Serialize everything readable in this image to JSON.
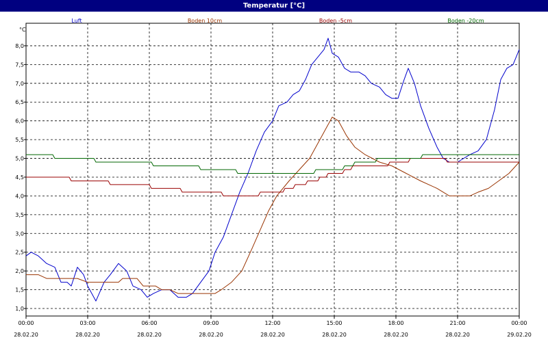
{
  "window": {
    "title": "Temperatur [°C]"
  },
  "chart_data": {
    "type": "line",
    "ylabel": "°C",
    "ylim": [
      0.8,
      8.6
    ],
    "yticks": [
      1.0,
      1.5,
      2.0,
      2.5,
      3.0,
      3.5,
      4.0,
      4.5,
      5.0,
      5.5,
      6.0,
      6.5,
      7.0,
      7.5,
      8.0
    ],
    "ytick_labels": [
      "1,0",
      "1,5",
      "2,0",
      "2,5",
      "3,0",
      "3,5",
      "4,0",
      "4,5",
      "5,0",
      "5,5",
      "6,0",
      "6,5",
      "7,0",
      "7,5",
      "8,0"
    ],
    "xlim": [
      0,
      24
    ],
    "xticks": [
      {
        "x": 0,
        "time": "00:00",
        "date": "28.02.20"
      },
      {
        "x": 3,
        "time": "03:00",
        "date": "28.02.20"
      },
      {
        "x": 6,
        "time": "06:00",
        "date": "28.02.20"
      },
      {
        "x": 9,
        "time": "09:00",
        "date": "28.02.20"
      },
      {
        "x": 12,
        "time": "12:00",
        "date": "28.02.20"
      },
      {
        "x": 15,
        "time": "15:00",
        "date": "28.02.20"
      },
      {
        "x": 18,
        "time": "18:00",
        "date": "28.02.20"
      },
      {
        "x": 21,
        "time": "21:00",
        "date": "28.02.20"
      },
      {
        "x": 24,
        "time": "00:00",
        "date": "29.02.20"
      }
    ],
    "grid": true,
    "legend_position": "top",
    "series": [
      {
        "name": "Luft",
        "color": "#0000cc",
        "points": [
          [
            0,
            2.4
          ],
          [
            0.25,
            2.5
          ],
          [
            0.6,
            2.4
          ],
          [
            1,
            2.2
          ],
          [
            1.4,
            2.1
          ],
          [
            1.7,
            1.7
          ],
          [
            2,
            1.7
          ],
          [
            2.2,
            1.6
          ],
          [
            2.5,
            2.1
          ],
          [
            2.8,
            1.9
          ],
          [
            3,
            1.6
          ],
          [
            3.4,
            1.2
          ],
          [
            3.8,
            1.7
          ],
          [
            4.1,
            1.9
          ],
          [
            4.5,
            2.2
          ],
          [
            4.9,
            2.0
          ],
          [
            5.2,
            1.6
          ],
          [
            5.6,
            1.5
          ],
          [
            5.9,
            1.3
          ],
          [
            6.2,
            1.4
          ],
          [
            6.6,
            1.5
          ],
          [
            7,
            1.5
          ],
          [
            7.4,
            1.3
          ],
          [
            7.8,
            1.3
          ],
          [
            8.1,
            1.4
          ],
          [
            8.5,
            1.7
          ],
          [
            8.9,
            2.0
          ],
          [
            9.2,
            2.5
          ],
          [
            9.6,
            2.9
          ],
          [
            10,
            3.5
          ],
          [
            10.4,
            4.1
          ],
          [
            10.8,
            4.6
          ],
          [
            11.2,
            5.2
          ],
          [
            11.6,
            5.7
          ],
          [
            12,
            6.0
          ],
          [
            12.3,
            6.4
          ],
          [
            12.7,
            6.5
          ],
          [
            13,
            6.7
          ],
          [
            13.3,
            6.8
          ],
          [
            13.6,
            7.1
          ],
          [
            13.9,
            7.5
          ],
          [
            14.2,
            7.7
          ],
          [
            14.5,
            7.9
          ],
          [
            14.7,
            8.2
          ],
          [
            14.9,
            7.8
          ],
          [
            15.2,
            7.7
          ],
          [
            15.5,
            7.4
          ],
          [
            15.8,
            7.3
          ],
          [
            16.2,
            7.3
          ],
          [
            16.5,
            7.2
          ],
          [
            16.8,
            7.0
          ],
          [
            17.2,
            6.9
          ],
          [
            17.5,
            6.7
          ],
          [
            17.8,
            6.6
          ],
          [
            18.1,
            6.6
          ],
          [
            18.4,
            7.1
          ],
          [
            18.6,
            7.4
          ],
          [
            18.9,
            7.0
          ],
          [
            19.2,
            6.4
          ],
          [
            19.6,
            5.8
          ],
          [
            20,
            5.3
          ],
          [
            20.3,
            5.0
          ],
          [
            20.6,
            4.9
          ],
          [
            21,
            4.9
          ],
          [
            21.3,
            5.0
          ],
          [
            21.6,
            5.1
          ],
          [
            22,
            5.2
          ],
          [
            22.4,
            5.5
          ],
          [
            22.8,
            6.3
          ],
          [
            23.1,
            7.1
          ],
          [
            23.4,
            7.4
          ],
          [
            23.7,
            7.5
          ],
          [
            24,
            7.9
          ]
        ]
      },
      {
        "name": "Boden 10cm",
        "color": "#993300",
        "points": [
          [
            0,
            1.9
          ],
          [
            0.6,
            1.9
          ],
          [
            1,
            1.8
          ],
          [
            2.5,
            1.8
          ],
          [
            3,
            1.7
          ],
          [
            4.5,
            1.7
          ],
          [
            4.7,
            1.8
          ],
          [
            5.4,
            1.8
          ],
          [
            5.7,
            1.6
          ],
          [
            6.3,
            1.6
          ],
          [
            6.6,
            1.5
          ],
          [
            7,
            1.5
          ],
          [
            7.4,
            1.4
          ],
          [
            9.2,
            1.4
          ],
          [
            9.5,
            1.5
          ],
          [
            10,
            1.7
          ],
          [
            10.5,
            2.0
          ],
          [
            11,
            2.6
          ],
          [
            11.4,
            3.1
          ],
          [
            11.8,
            3.6
          ],
          [
            12.2,
            4.0
          ],
          [
            12.8,
            4.4
          ],
          [
            13.3,
            4.7
          ],
          [
            13.8,
            5.0
          ],
          [
            14.2,
            5.4
          ],
          [
            14.6,
            5.8
          ],
          [
            14.9,
            6.1
          ],
          [
            15.2,
            6.0
          ],
          [
            15.6,
            5.6
          ],
          [
            16,
            5.3
          ],
          [
            16.5,
            5.1
          ],
          [
            17.2,
            4.9
          ],
          [
            17.8,
            4.8
          ],
          [
            18.5,
            4.6
          ],
          [
            19.2,
            4.4
          ],
          [
            20,
            4.2
          ],
          [
            20.6,
            4.0
          ],
          [
            21.6,
            4.0
          ],
          [
            22,
            4.1
          ],
          [
            22.5,
            4.2
          ],
          [
            23,
            4.4
          ],
          [
            23.5,
            4.6
          ],
          [
            24,
            4.9
          ]
        ]
      },
      {
        "name": "Boden -5cm",
        "color": "#990000",
        "points": [
          [
            0,
            4.5
          ],
          [
            2.1,
            4.5
          ],
          [
            2.2,
            4.4
          ],
          [
            4,
            4.4
          ],
          [
            4.1,
            4.3
          ],
          [
            6,
            4.3
          ],
          [
            6.1,
            4.2
          ],
          [
            7.5,
            4.2
          ],
          [
            7.6,
            4.1
          ],
          [
            9.5,
            4.1
          ],
          [
            9.6,
            4.0
          ],
          [
            11.3,
            4.0
          ],
          [
            11.4,
            4.1
          ],
          [
            12.5,
            4.1
          ],
          [
            12.6,
            4.2
          ],
          [
            13,
            4.2
          ],
          [
            13.1,
            4.3
          ],
          [
            13.6,
            4.3
          ],
          [
            13.7,
            4.4
          ],
          [
            14.2,
            4.4
          ],
          [
            14.3,
            4.5
          ],
          [
            14.6,
            4.5
          ],
          [
            14.7,
            4.6
          ],
          [
            15.4,
            4.6
          ],
          [
            15.5,
            4.7
          ],
          [
            15.8,
            4.7
          ],
          [
            15.9,
            4.8
          ],
          [
            17.6,
            4.8
          ],
          [
            17.7,
            4.9
          ],
          [
            18.6,
            4.9
          ],
          [
            18.7,
            5.0
          ],
          [
            20.4,
            5.0
          ],
          [
            20.5,
            4.9
          ],
          [
            24,
            4.9
          ]
        ]
      },
      {
        "name": "Boden -20cm",
        "color": "#006600",
        "points": [
          [
            0,
            5.1
          ],
          [
            1.3,
            5.1
          ],
          [
            1.4,
            5.0
          ],
          [
            3.3,
            5.0
          ],
          [
            3.4,
            4.9
          ],
          [
            6.1,
            4.9
          ],
          [
            6.2,
            4.8
          ],
          [
            8.4,
            4.8
          ],
          [
            8.5,
            4.7
          ],
          [
            10.2,
            4.7
          ],
          [
            10.3,
            4.6
          ],
          [
            14,
            4.6
          ],
          [
            14.1,
            4.7
          ],
          [
            15.4,
            4.7
          ],
          [
            15.5,
            4.8
          ],
          [
            15.9,
            4.8
          ],
          [
            16,
            4.9
          ],
          [
            17,
            4.9
          ],
          [
            17.1,
            5.0
          ],
          [
            19.2,
            5.0
          ],
          [
            19.3,
            5.1
          ],
          [
            24,
            5.1
          ]
        ]
      }
    ]
  }
}
